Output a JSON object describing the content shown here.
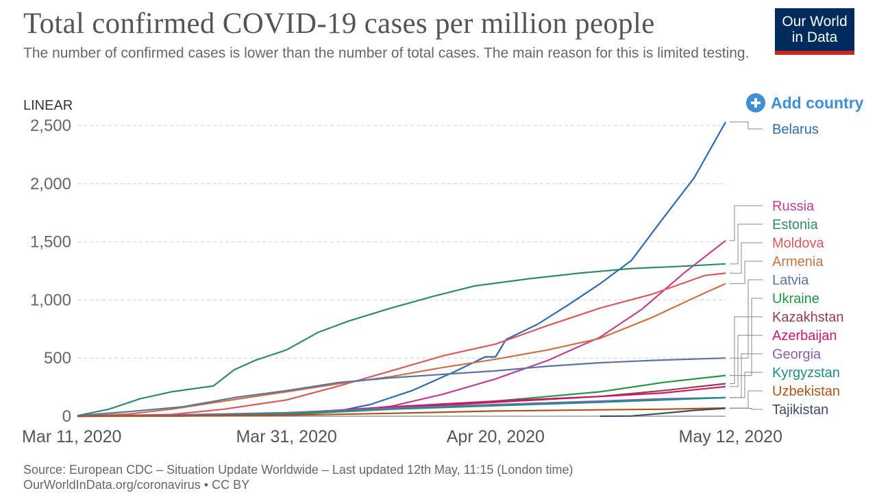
{
  "header": {
    "title": "Total confirmed COVID-19 cases per million people",
    "subtitle": "The number of confirmed cases is lower than the number of total cases. The main reason for this is limited testing.",
    "logo_line1": "Our World",
    "logo_line2": "in Data"
  },
  "controls": {
    "scale_label": "LINEAR",
    "add_country_label": "Add country"
  },
  "footer": {
    "source": "Source: European CDC – Situation Update Worldwide – Last updated 12th May, 11:15 (London time)",
    "link": "OurWorldInData.org/coronavirus • CC BY"
  },
  "chart_data": {
    "type": "line",
    "ylabel": "",
    "ylim": [
      0,
      2500
    ],
    "y_ticks": [
      0,
      500,
      1000,
      1500,
      2000,
      2500
    ],
    "y_tick_labels": [
      "0",
      "500",
      "1,000",
      "1,500",
      "2,000",
      "2,500"
    ],
    "x_range": [
      "2020-03-11",
      "2020-05-12"
    ],
    "x_ticks": [
      "2020-03-11",
      "2020-03-31",
      "2020-04-20",
      "2020-05-12"
    ],
    "x_tick_labels": [
      "Mar 11, 2020",
      "Mar 31, 2020",
      "Apr 20, 2020",
      "May 12, 2020"
    ],
    "grid": "horizontal dashed",
    "legend_position": "right",
    "series": [
      {
        "name": "Belarus",
        "color": "#286bbb",
        "points": [
          [
            "2020-03-11",
            0
          ],
          [
            "2020-03-20",
            2
          ],
          [
            "2020-03-31",
            15
          ],
          [
            "2020-04-05",
            45
          ],
          [
            "2020-04-08",
            100
          ],
          [
            "2020-04-12",
            220
          ],
          [
            "2020-04-16",
            380
          ],
          [
            "2020-04-19",
            510
          ],
          [
            "2020-04-20",
            510
          ],
          [
            "2020-04-21",
            660
          ],
          [
            "2020-04-24",
            790
          ],
          [
            "2020-04-27",
            960
          ],
          [
            "2020-04-30",
            1140
          ],
          [
            "2020-05-03",
            1340
          ],
          [
            "2020-05-06",
            1700
          ],
          [
            "2020-05-09",
            2050
          ],
          [
            "2020-05-12",
            2530
          ]
        ]
      },
      {
        "name": "Russia",
        "color": "#c93a93",
        "points": [
          [
            "2020-03-11",
            0
          ],
          [
            "2020-03-20",
            1
          ],
          [
            "2020-03-31",
            16
          ],
          [
            "2020-04-05",
            40
          ],
          [
            "2020-04-10",
            85
          ],
          [
            "2020-04-15",
            190
          ],
          [
            "2020-04-20",
            320
          ],
          [
            "2020-04-25",
            480
          ],
          [
            "2020-04-30",
            680
          ],
          [
            "2020-05-04",
            920
          ],
          [
            "2020-05-08",
            1230
          ],
          [
            "2020-05-12",
            1510
          ]
        ]
      },
      {
        "name": "Estonia",
        "color": "#2e8a6e",
        "points": [
          [
            "2020-03-11",
            5
          ],
          [
            "2020-03-14",
            60
          ],
          [
            "2020-03-17",
            150
          ],
          [
            "2020-03-20",
            210
          ],
          [
            "2020-03-24",
            260
          ],
          [
            "2020-03-26",
            400
          ],
          [
            "2020-03-28",
            480
          ],
          [
            "2020-03-31",
            570
          ],
          [
            "2020-04-03",
            720
          ],
          [
            "2020-04-06",
            820
          ],
          [
            "2020-04-10",
            930
          ],
          [
            "2020-04-14",
            1030
          ],
          [
            "2020-04-18",
            1120
          ],
          [
            "2020-04-23",
            1180
          ],
          [
            "2020-04-28",
            1230
          ],
          [
            "2020-05-03",
            1270
          ],
          [
            "2020-05-08",
            1290
          ],
          [
            "2020-05-12",
            1310
          ]
        ]
      },
      {
        "name": "Moldova",
        "color": "#e0565c",
        "points": [
          [
            "2020-03-11",
            0
          ],
          [
            "2020-03-20",
            15
          ],
          [
            "2020-03-25",
            60
          ],
          [
            "2020-03-31",
            140
          ],
          [
            "2020-04-05",
            260
          ],
          [
            "2020-04-10",
            390
          ],
          [
            "2020-04-15",
            520
          ],
          [
            "2020-04-20",
            620
          ],
          [
            "2020-04-25",
            780
          ],
          [
            "2020-04-30",
            930
          ],
          [
            "2020-05-05",
            1050
          ],
          [
            "2020-05-10",
            1210
          ],
          [
            "2020-05-12",
            1230
          ]
        ]
      },
      {
        "name": "Armenia",
        "color": "#d0713d",
        "points": [
          [
            "2020-03-11",
            0
          ],
          [
            "2020-03-16",
            20
          ],
          [
            "2020-03-20",
            60
          ],
          [
            "2020-03-25",
            130
          ],
          [
            "2020-03-31",
            210
          ],
          [
            "2020-04-05",
            280
          ],
          [
            "2020-04-10",
            340
          ],
          [
            "2020-04-15",
            420
          ],
          [
            "2020-04-20",
            490
          ],
          [
            "2020-04-25",
            570
          ],
          [
            "2020-04-30",
            670
          ],
          [
            "2020-05-05",
            850
          ],
          [
            "2020-05-10",
            1060
          ],
          [
            "2020-05-12",
            1140
          ]
        ]
      },
      {
        "name": "Latvia",
        "color": "#5b73a8",
        "points": [
          [
            "2020-03-11",
            5
          ],
          [
            "2020-03-16",
            40
          ],
          [
            "2020-03-21",
            80
          ],
          [
            "2020-03-26",
            160
          ],
          [
            "2020-03-31",
            220
          ],
          [
            "2020-04-05",
            290
          ],
          [
            "2020-04-10",
            330
          ],
          [
            "2020-04-15",
            360
          ],
          [
            "2020-04-20",
            390
          ],
          [
            "2020-04-25",
            430
          ],
          [
            "2020-04-30",
            460
          ],
          [
            "2020-05-05",
            480
          ],
          [
            "2020-05-12",
            500
          ]
        ]
      },
      {
        "name": "Ukraine",
        "color": "#1f9a3f",
        "points": [
          [
            "2020-03-11",
            0
          ],
          [
            "2020-03-31",
            15
          ],
          [
            "2020-04-10",
            60
          ],
          [
            "2020-04-20",
            130
          ],
          [
            "2020-04-30",
            210
          ],
          [
            "2020-05-06",
            290
          ],
          [
            "2020-05-12",
            350
          ]
        ]
      },
      {
        "name": "Kazakhstan",
        "color": "#9a3b47",
        "points": [
          [
            "2020-03-11",
            0
          ],
          [
            "2020-03-20",
            5
          ],
          [
            "2020-03-31",
            25
          ],
          [
            "2020-04-10",
            70
          ],
          [
            "2020-04-20",
            120
          ],
          [
            "2020-04-30",
            170
          ],
          [
            "2020-05-06",
            220
          ],
          [
            "2020-05-12",
            280
          ]
        ]
      },
      {
        "name": "Azerbaijan",
        "color": "#d4146c",
        "points": [
          [
            "2020-03-11",
            0
          ],
          [
            "2020-03-20",
            5
          ],
          [
            "2020-03-31",
            25
          ],
          [
            "2020-04-10",
            80
          ],
          [
            "2020-04-20",
            130
          ],
          [
            "2020-04-30",
            170
          ],
          [
            "2020-05-06",
            200
          ],
          [
            "2020-05-12",
            255
          ]
        ]
      },
      {
        "name": "Georgia",
        "color": "#8a5fa8",
        "points": [
          [
            "2020-03-11",
            2
          ],
          [
            "2020-03-20",
            10
          ],
          [
            "2020-03-31",
            30
          ],
          [
            "2020-04-10",
            70
          ],
          [
            "2020-04-20",
            100
          ],
          [
            "2020-04-30",
            130
          ],
          [
            "2020-05-06",
            150
          ],
          [
            "2020-05-12",
            160
          ]
        ]
      },
      {
        "name": "Kyrgyzstan",
        "color": "#16918e",
        "points": [
          [
            "2020-03-11",
            0
          ],
          [
            "2020-03-20",
            3
          ],
          [
            "2020-03-31",
            20
          ],
          [
            "2020-04-10",
            60
          ],
          [
            "2020-04-20",
            90
          ],
          [
            "2020-04-30",
            120
          ],
          [
            "2020-05-06",
            140
          ],
          [
            "2020-05-12",
            160
          ]
        ]
      },
      {
        "name": "Uzbekistan",
        "color": "#b55212",
        "points": [
          [
            "2020-03-11",
            0
          ],
          [
            "2020-03-20",
            2
          ],
          [
            "2020-03-31",
            8
          ],
          [
            "2020-04-10",
            25
          ],
          [
            "2020-04-20",
            45
          ],
          [
            "2020-04-30",
            55
          ],
          [
            "2020-05-06",
            60
          ],
          [
            "2020-05-12",
            70
          ]
        ]
      },
      {
        "name": "Tajikistan",
        "color": "#3d4a6b",
        "points": [
          [
            "2020-04-30",
            0
          ],
          [
            "2020-05-03",
            2
          ],
          [
            "2020-05-06",
            25
          ],
          [
            "2020-05-09",
            50
          ],
          [
            "2020-05-12",
            68
          ]
        ]
      }
    ]
  }
}
